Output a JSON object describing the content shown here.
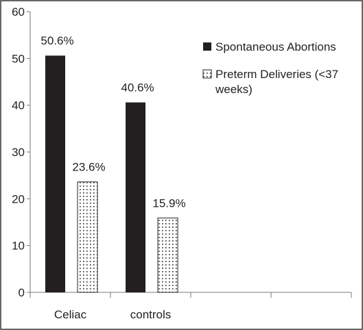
{
  "chart_data": {
    "type": "bar",
    "categories": [
      "Celiac",
      "controls"
    ],
    "series": [
      {
        "name": "Spontaneous Abortions",
        "values": [
          50.6,
          40.6
        ],
        "labels": [
          "50.6%",
          "40.6%"
        ],
        "fill": "solid",
        "color": "#231f20"
      },
      {
        "name_lines": [
          "Preterm Deliveries (<37",
          "weeks)"
        ],
        "values": [
          23.6,
          15.9
        ],
        "labels": [
          "23.6%",
          "15.9%"
        ],
        "fill": "dotted",
        "color": "#231f20"
      }
    ],
    "yticks": [
      "0",
      "10",
      "20",
      "30",
      "40",
      "50",
      "60"
    ],
    "ylim": [
      0,
      60
    ],
    "title": "",
    "xlabel": "",
    "ylabel": "",
    "legend_position": "top-right",
    "grid": false
  }
}
